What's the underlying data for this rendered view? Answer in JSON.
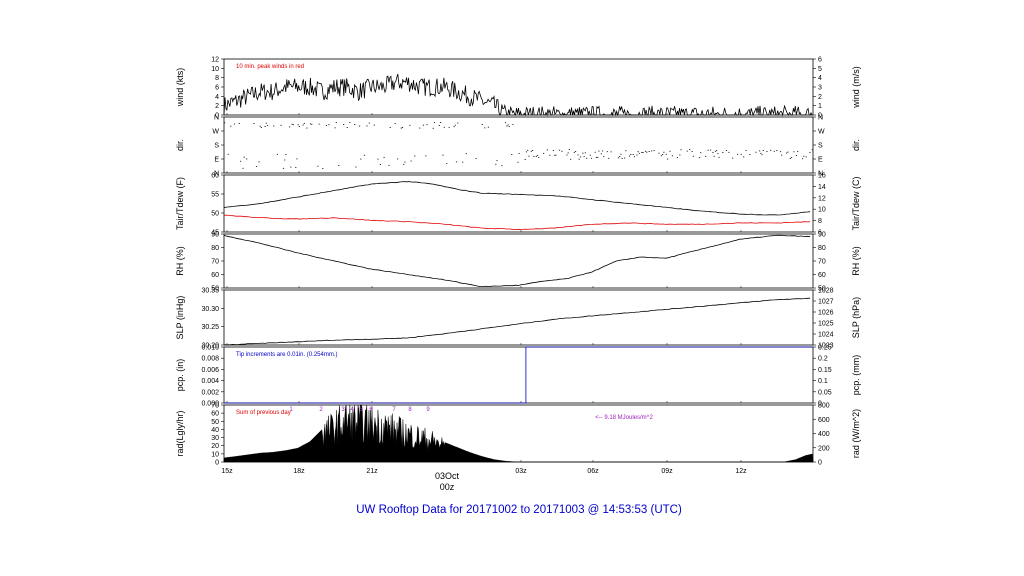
{
  "title": "UW Rooftop Data for 20171002  to  20171003 @ 14:53:53  (UTC)",
  "colors": {
    "axis": "#000000",
    "red": "#e00000",
    "blue": "#0000cc",
    "purple": "#a020c0"
  },
  "chart_data": {
    "type": "line",
    "x_axis": {
      "ticks": [
        "15z",
        "18z",
        "21z",
        "03z",
        "06z",
        "09z",
        "12z"
      ],
      "date_label": "03Oct",
      "date_sub": "00z"
    },
    "panels": [
      {
        "id": "wind",
        "ylabel_left": "wind (kts)",
        "ylabel_right": "wind (m/s)",
        "ylim_left": [
          0,
          12
        ],
        "ylim_right": [
          0,
          6
        ],
        "yticks_left": [
          "0",
          "2",
          "4",
          "6",
          "8",
          "10",
          "12"
        ],
        "yticks_right": [
          "0",
          "1",
          "2",
          "3",
          "4",
          "5",
          "6"
        ],
        "note": "10 min. peak winds in red",
        "series": [
          {
            "x": [
              0,
              0.5,
              1,
              1.5,
              2,
              2.5,
              3,
              3.5,
              4,
              4.5,
              5,
              5.5,
              6,
              6.5,
              7,
              7.5,
              8,
              8.5,
              9,
              9.5,
              10,
              10.5,
              11,
              11.5,
              12,
              12.5,
              13,
              13.5,
              14,
              14.5,
              15,
              15.5,
              16,
              16.5,
              17,
              17.5,
              18,
              18.5,
              19,
              19.5,
              20,
              20.5,
              21,
              21.5,
              22,
              22.5,
              23,
              23.5,
              24
            ],
            "y": [
              2,
              3,
              4,
              5,
              5,
              6,
              6,
              6,
              5,
              6,
              6,
              5,
              6,
              6,
              7,
              7,
              6,
              6,
              6,
              5,
              4,
              3,
              2,
              0,
              0,
              0,
              0,
              0,
              0,
              0,
              0,
              0,
              0,
              0,
              0,
              0,
              0,
              0,
              0,
              0,
              0,
              0,
              0,
              0,
              0,
              0,
              0,
              0,
              0
            ]
          }
        ]
      },
      {
        "id": "dir",
        "ylabel_left": "dir.",
        "ylabel_right": "dir.",
        "yticks_left": [
          "N",
          "E",
          "S",
          "W",
          "N"
        ],
        "yticks_right": [
          "N",
          "E",
          "S",
          "W",
          "N"
        ]
      },
      {
        "id": "temp",
        "ylabel_left": "Tair/Tdew (F)",
        "ylabel_right": "Tair/Tdew (C)",
        "ylim_left": [
          42,
          64
        ],
        "ylim_right": [
          6,
          16
        ],
        "yticks_left": [
          "45",
          "50",
          "55",
          "60"
        ],
        "yticks_right": [
          "6",
          "8",
          "10",
          "12",
          "14",
          "16"
        ],
        "series": [
          {
            "x": [
              0,
              1.5,
              3,
              4.5,
              6,
              7.5,
              8.5,
              9.5,
              10.5,
              12,
              13.5,
              15,
              16.5,
              18,
              19.5,
              21,
              22.5,
              24
            ],
            "y": [
              51.5,
              53,
              55.5,
              58,
              60.5,
              61.5,
              60.5,
              58.5,
              57,
              56.5,
              56,
              54.5,
              53,
              51.5,
              50,
              49,
              48.5,
              50
            ]
          },
          {
            "x": [
              0,
              1.5,
              3,
              4.5,
              6,
              7.5,
              9,
              10.5,
              12,
              13.5,
              15,
              16.5,
              18,
              19.5,
              21,
              22.5,
              24
            ],
            "y": [
              48.5,
              47.5,
              47,
              47.5,
              46.5,
              46,
              45,
              43.5,
              43,
              43.5,
              45,
              45.5,
              45,
              45,
              45.5,
              45.5,
              46
            ]
          }
        ]
      },
      {
        "id": "rh",
        "ylabel_left": "RH (%)",
        "ylabel_right": "RH (%)",
        "ylim_left": [
          50,
          90
        ],
        "ylim_right": [
          50,
          90
        ],
        "yticks_left": [
          "50",
          "60",
          "70",
          "80",
          "90"
        ],
        "yticks_right": [
          "50",
          "60",
          "70",
          "80",
          "90"
        ],
        "series": [
          {
            "x": [
              0,
              1.5,
              3,
              4.5,
              6,
              7.5,
              9,
              10.5,
              12,
              13,
              14,
              15,
              16,
              17,
              18,
              19.5,
              21,
              22.5,
              24
            ],
            "y": [
              89,
              83,
              76,
              70,
              64,
              60,
              56,
              51,
              52,
              55,
              57,
              62,
              70,
              73,
              72,
              79,
              86,
              89,
              88
            ]
          }
        ]
      },
      {
        "id": "slp",
        "ylabel_left": "SLP (inHg)",
        "ylabel_right": "SLP (hPa)",
        "ylim_left": [
          30.2,
          30.37
        ],
        "ylim_right": [
          1023,
          1028.2
        ],
        "yticks_left": [
          "30.20",
          "30.25",
          "30.30",
          "30.35"
        ],
        "yticks_right": [
          "1023",
          "1024",
          "1025",
          "1026",
          "1027",
          "1028"
        ],
        "series": [
          {
            "x": [
              0,
              1.5,
              3,
              4.5,
              6,
              7.5,
              9,
              10.5,
              12,
              13.5,
              15,
              16.5,
              18,
              19.5,
              21,
              22.5,
              24
            ],
            "y": [
              30.2,
              30.205,
              30.21,
              30.215,
              30.218,
              30.222,
              30.235,
              30.25,
              30.265,
              30.28,
              30.29,
              30.3,
              30.31,
              30.32,
              30.33,
              30.34,
              30.345
            ]
          }
        ]
      },
      {
        "id": "pcp",
        "ylabel_left": "pcp. (in)",
        "ylabel_right": "pcp. (mm)",
        "ylim_left": [
          0,
          0.01
        ],
        "ylim_right": [
          0,
          0.25
        ],
        "yticks_left": [
          "0.000",
          "0.002",
          "0.004",
          "0.006",
          "0.008",
          "0.010"
        ],
        "yticks_right": [
          "0",
          "0.05",
          "0.1",
          "0.15",
          "0.2",
          "0.25"
        ],
        "note": "Tip increments are 0.01in. (0.254mm.)",
        "series": [
          {
            "x": [
              0,
              12.3,
              12.3,
              24
            ],
            "y": [
              0,
              0,
              0.01,
              0.01
            ]
          }
        ]
      },
      {
        "id": "rad",
        "ylabel_left": "rad(Lgly/hr)",
        "ylabel_right": "rad (W/m^2)",
        "ylim_left": [
          0,
          70
        ],
        "ylim_right": [
          0,
          800
        ],
        "yticks_left": [
          "0",
          "10",
          "20",
          "30",
          "40",
          "50",
          "60",
          "70"
        ],
        "yticks_right": [
          "0",
          "200",
          "400",
          "600",
          "800"
        ],
        "note": "Sum of previous day",
        "note2": "<-- 9.18 MJoules/m^2",
        "marker_labels": [
          "1",
          "2",
          "3",
          "4",
          "5",
          "6",
          "7",
          "8",
          "9"
        ],
        "series": [
          {
            "x": [
              0,
              0.5,
              1,
              1.5,
              2,
              2.5,
              3,
              3.5,
              4,
              4.5,
              5,
              5.5,
              6,
              6.5,
              7,
              7.5,
              8,
              8.5,
              9,
              9.5,
              10,
              10.5,
              11,
              11.5,
              12,
              22.8,
              23.3,
              23.7,
              24
            ],
            "y": [
              5,
              7,
              9,
              11,
              12,
              14,
              17,
              25,
              40,
              50,
              60,
              58,
              55,
              52,
              45,
              40,
              35,
              30,
              24,
              18,
              12,
              7,
              3,
              1,
              0,
              0,
              3,
              8,
              10
            ]
          }
        ]
      }
    ]
  }
}
